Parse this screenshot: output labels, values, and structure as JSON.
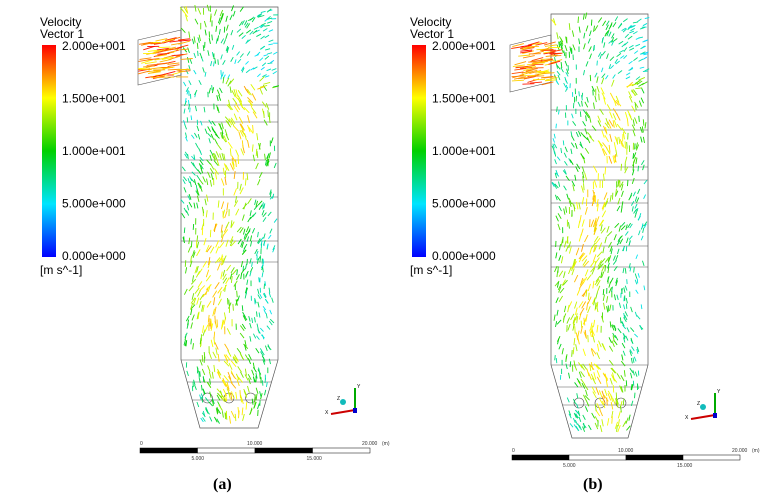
{
  "panels": [
    {
      "legend": {
        "title": "Velocity",
        "subtitle": "Vector 1",
        "ticks": [
          "2.000e+001",
          "1.500e+001",
          "1.000e+001",
          "5.000e+000",
          "0.000e+000"
        ],
        "unit": "[m s^-1]"
      },
      "scale": {
        "top_labels": [
          "0",
          "10.000",
          "20.000",
          "(m)"
        ],
        "bottom_labels": [
          "5.000",
          "15.000"
        ]
      },
      "axes": {
        "y": "Y",
        "x": "X",
        "z": "Z"
      },
      "caption": "(a)"
    },
    {
      "legend": {
        "title": "Velocity",
        "subtitle": "Vector 1",
        "ticks": [
          "2.000e+001",
          "1.500e+001",
          "1.000e+001",
          "5.000e+000",
          "0.000e+000"
        ],
        "unit": "[m s^-1]"
      },
      "scale": {
        "top_labels": [
          "0",
          "10.000",
          "20.000",
          "(m)"
        ],
        "bottom_labels": [
          "5.000",
          "15.000"
        ]
      },
      "axes": {
        "y": "Y",
        "x": "X",
        "z": "Z"
      },
      "caption": "(b)"
    }
  ]
}
